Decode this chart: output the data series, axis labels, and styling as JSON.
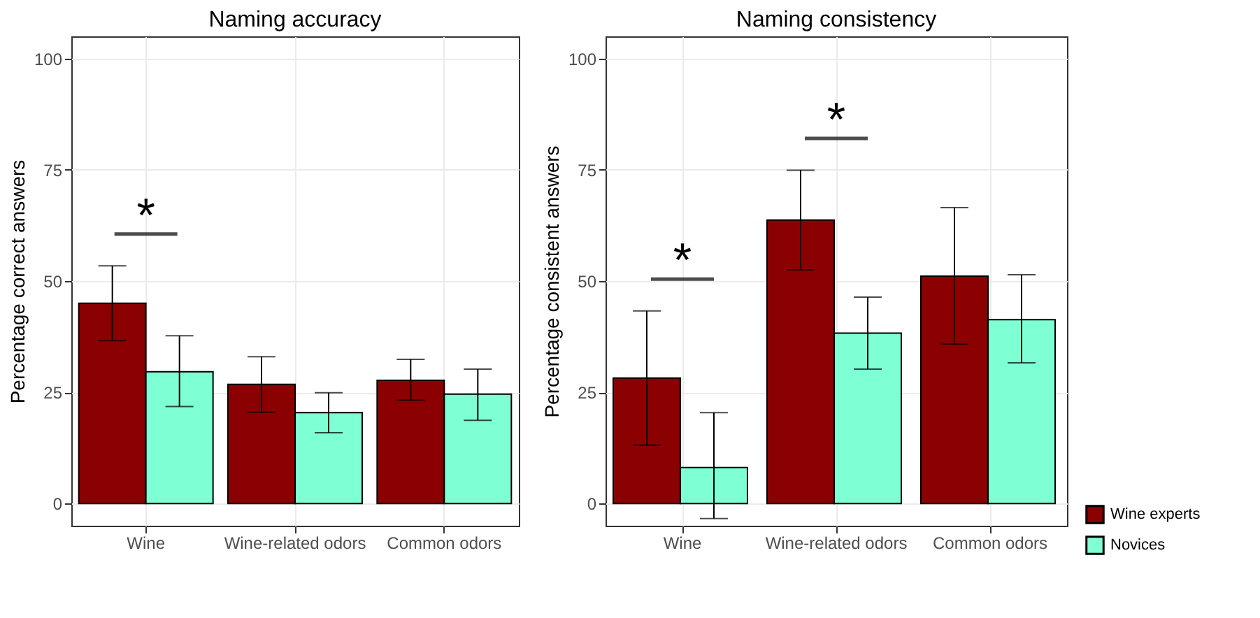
{
  "chart_data": [
    {
      "type": "bar",
      "title": "Naming accuracy",
      "ylabel": "Percentage correct answers",
      "categories": [
        "Wine",
        "Wine-related odors",
        "Common odors"
      ],
      "series": [
        {
          "name": "Wine experts",
          "color": "#8b0000",
          "values": [
            45.0,
            26.8,
            27.7
          ],
          "errors": [
            [
              36.6,
              53.4
            ],
            [
              20.5,
              33.0
            ],
            [
              23.2,
              32.4
            ]
          ]
        },
        {
          "name": "Novices",
          "color": "#7fffd4",
          "values": [
            29.6,
            20.4,
            24.6
          ],
          "errors": [
            [
              21.8,
              37.7
            ],
            [
              15.9,
              24.9
            ],
            [
              18.7,
              30.2
            ]
          ]
        }
      ],
      "ylim": [
        -5,
        105
      ],
      "yticks": [
        0,
        25,
        50,
        75,
        100
      ],
      "grid": true,
      "legend": "bottom right",
      "annotations": [
        "*"
      ]
    },
    {
      "type": "bar",
      "title": "Naming consistency",
      "ylabel": "Percentage consistent answers",
      "categories": [
        "Wine",
        "Wine-related odors",
        "Common odors"
      ],
      "series": [
        {
          "name": "Wine experts",
          "color": "#8b0000",
          "values": [
            28.2,
            63.7,
            51.1
          ],
          "errors": [
            [
              13.1,
              43.3
            ],
            [
              52.5,
              74.9
            ],
            [
              35.8,
              66.5
            ]
          ]
        },
        {
          "name": "Novices",
          "color": "#7fffd4",
          "values": [
            8.1,
            38.3,
            41.3
          ],
          "errors": [
            [
              -3.4,
              20.4
            ],
            [
              30.2,
              46.4
            ],
            [
              31.6,
              51.4
            ]
          ]
        }
      ],
      "ylim": [
        -5,
        105
      ],
      "yticks": [
        0,
        25,
        50,
        75,
        100
      ],
      "grid": true,
      "legend": "bottom right",
      "annotations": [
        "*",
        "*"
      ]
    }
  ]
}
